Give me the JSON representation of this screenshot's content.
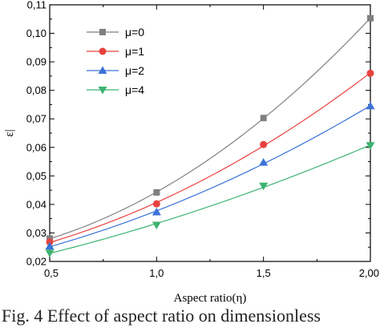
{
  "chart_data": {
    "type": "line",
    "xlabel": "Aspect ratio(η)",
    "ylabel": "ε|",
    "x": [
      0.5,
      1.0,
      1.5,
      2.0
    ],
    "x_tick_labels": [
      "0,5",
      "1,0",
      "1,5",
      "2,00"
    ],
    "y_tick_labels": [
      "0,02",
      "0,03",
      "0,04",
      "0,05",
      "0,06",
      "0,07",
      "0,08",
      "0,09",
      "0,10",
      "0,11"
    ],
    "xlim": [
      0.5,
      2.0
    ],
    "ylim": [
      0.02,
      0.11
    ],
    "grid": false,
    "legend_position": "top-left",
    "series": [
      {
        "name": "μ=0",
        "values": [
          0.028,
          0.0442,
          0.0703,
          0.1053
        ],
        "color": "#808080",
        "marker": "square"
      },
      {
        "name": "μ=1",
        "values": [
          0.0268,
          0.0402,
          0.061,
          0.086
        ],
        "color": "#e8423f",
        "marker": "circle"
      },
      {
        "name": "μ=2",
        "values": [
          0.0253,
          0.0373,
          0.0547,
          0.0745
        ],
        "color": "#3a72d8",
        "marker": "triangle-up"
      },
      {
        "name": "μ=4",
        "values": [
          0.023,
          0.0328,
          0.0465,
          0.0607
        ],
        "color": "#3cb371",
        "marker": "triangle-down"
      }
    ]
  },
  "caption": "Fig. 4 Effect of aspect ratio on dimensionless"
}
